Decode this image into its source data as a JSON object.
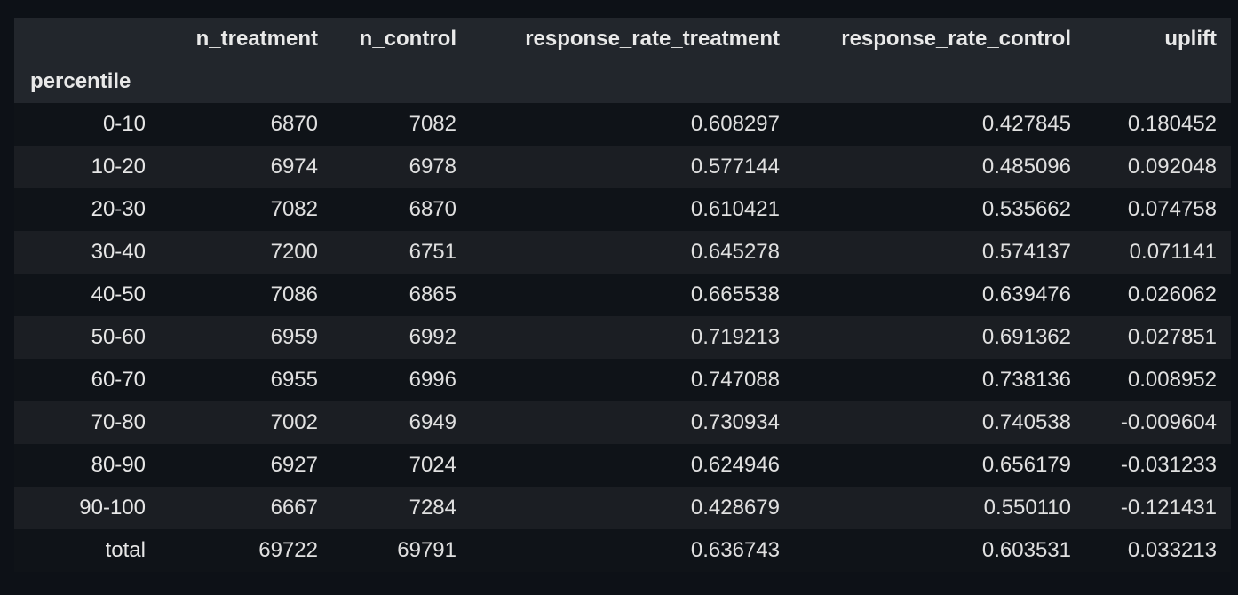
{
  "table": {
    "columns": [
      "",
      "n_treatment",
      "n_control",
      "response_rate_treatment",
      "response_rate_control",
      "uplift"
    ],
    "index_name": "percentile",
    "rows": [
      [
        "0-10",
        "6870",
        "7082",
        "0.608297",
        "0.427845",
        "0.180452"
      ],
      [
        "10-20",
        "6974",
        "6978",
        "0.577144",
        "0.485096",
        "0.092048"
      ],
      [
        "20-30",
        "7082",
        "6870",
        "0.610421",
        "0.535662",
        "0.074758"
      ],
      [
        "30-40",
        "7200",
        "6751",
        "0.645278",
        "0.574137",
        "0.071141"
      ],
      [
        "40-50",
        "7086",
        "6865",
        "0.665538",
        "0.639476",
        "0.026062"
      ],
      [
        "50-60",
        "6959",
        "6992",
        "0.719213",
        "0.691362",
        "0.027851"
      ],
      [
        "60-70",
        "6955",
        "6996",
        "0.747088",
        "0.738136",
        "0.008952"
      ],
      [
        "70-80",
        "7002",
        "6949",
        "0.730934",
        "0.740538",
        "-0.009604"
      ],
      [
        "80-90",
        "6927",
        "7024",
        "0.624946",
        "0.656179",
        "-0.031233"
      ],
      [
        "90-100",
        "6667",
        "7284",
        "0.428679",
        "0.550110",
        "-0.121431"
      ],
      [
        "total",
        "69722",
        "69791",
        "0.636743",
        "0.603531",
        "0.033213"
      ]
    ]
  }
}
